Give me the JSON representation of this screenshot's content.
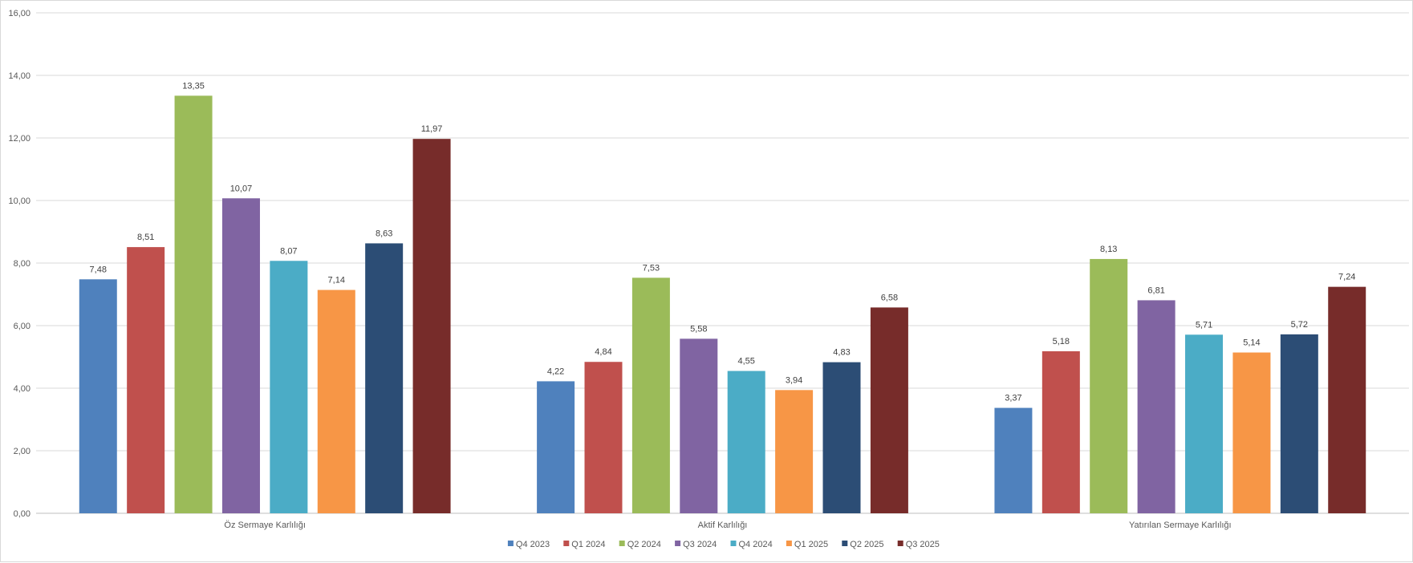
{
  "chart_data": {
    "type": "bar",
    "categories": [
      "Öz Sermaye Karlılığı",
      "Aktif Karlılığı",
      "Yatırılan Sermaye Karlılığı"
    ],
    "series": [
      {
        "name": "Q4 2023",
        "color": "#4f81bd",
        "values": [
          7.48,
          4.22,
          3.37
        ],
        "labels": [
          "7,48",
          "4,22",
          "3,37"
        ]
      },
      {
        "name": "Q1 2024",
        "color": "#c0504d",
        "values": [
          8.51,
          4.84,
          5.18
        ],
        "labels": [
          "8,51",
          "4,84",
          "5,18"
        ]
      },
      {
        "name": "Q2 2024",
        "color": "#9bbb59",
        "values": [
          13.35,
          7.53,
          8.13
        ],
        "labels": [
          "13,35",
          "7,53",
          "8,13"
        ]
      },
      {
        "name": "Q3 2024",
        "color": "#8064a2",
        "values": [
          10.07,
          5.58,
          6.81
        ],
        "labels": [
          "10,07",
          "5,58",
          "6,81"
        ]
      },
      {
        "name": "Q4 2024",
        "color": "#4bacc6",
        "values": [
          8.07,
          4.55,
          5.71
        ],
        "labels": [
          "8,07",
          "4,55",
          "5,71"
        ]
      },
      {
        "name": "Q1 2025",
        "color": "#f79646",
        "values": [
          7.14,
          3.94,
          5.14
        ],
        "labels": [
          "7,14",
          "3,94",
          "5,14"
        ]
      },
      {
        "name": "Q2 2025",
        "color": "#2c4d75",
        "values": [
          8.63,
          4.83,
          5.72
        ],
        "labels": [
          "8,63",
          "4,83",
          "5,72"
        ]
      },
      {
        "name": "Q3 2025",
        "color": "#772c2a",
        "values": [
          11.97,
          6.58,
          7.24
        ],
        "labels": [
          "11,97",
          "6,58",
          "7,24"
        ]
      }
    ],
    "yticks": [
      0,
      2,
      4,
      6,
      8,
      10,
      12,
      14,
      16
    ],
    "ytick_labels": [
      "0,00",
      "2,00",
      "4,00",
      "6,00",
      "8,00",
      "10,00",
      "12,00",
      "14,00",
      "16,00"
    ],
    "ylim": [
      0,
      16
    ],
    "grid": true,
    "legend": "bottom"
  }
}
